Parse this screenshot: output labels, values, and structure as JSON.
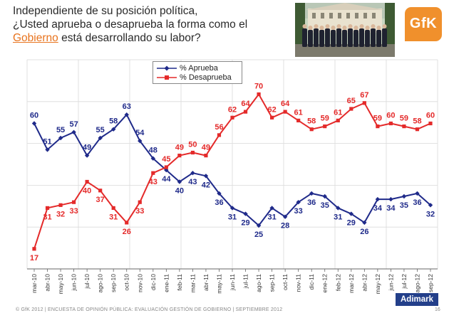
{
  "title": {
    "line1": "Independiente de su posición política,",
    "line2": "¿Usted aprueba o desaprueba la forma como el",
    "line3_highlight": "Gobierno",
    "line3_rest": " está desarrollando su labor?"
  },
  "logo_text": "GfK",
  "brand_text": "Adimark",
  "footer": "© GfK 2012 | ENCUESTA DE OPINIÓN PÚBLICA: EVALUACIÓN GESTIÓN DE GOBIERNO | SEPTIEMBRE 2012",
  "page_number": "16",
  "colors": {
    "approve": "#1f2a8a",
    "disapprove": "#e42a2a",
    "grid": "#d9d9d9",
    "accent": "#e8731d",
    "brand": "#233f8a"
  },
  "chart_data": {
    "type": "line",
    "title": "",
    "xlabel": "",
    "ylabel": "",
    "ylim": [
      15,
      75
    ],
    "grid": true,
    "legend": "top-center",
    "categories": [
      "mar-10",
      "abr-10",
      "may-10",
      "jun-10",
      "jul-10",
      "ago-10",
      "sep-10",
      "oct-10",
      "nov-10",
      "dic-10",
      "ene-11",
      "feb-11",
      "mar-11",
      "abr-11",
      "may-11",
      "jun-11",
      "jul-11",
      "ago-11",
      "sep-11",
      "oct-11",
      "nov-11",
      "dic-11",
      "ene-12",
      "feb-12",
      "mar-12",
      "abr-12",
      "may-12",
      "jun-12",
      "jul-12",
      "ago-12",
      "sep-12"
    ],
    "series": [
      {
        "name": "% Aprueba",
        "marker": "diamond",
        "values": [
          60,
          51,
          55,
          57,
          49,
          55,
          58,
          63,
          54,
          48,
          44,
          40,
          43,
          42,
          36,
          31,
          29,
          25,
          31,
          28,
          33,
          36,
          35,
          31,
          29,
          26,
          34,
          34,
          35,
          36,
          32
        ]
      },
      {
        "name": "% Desaprueba",
        "marker": "square",
        "values": [
          17,
          31,
          32,
          33,
          40,
          37,
          31,
          26,
          33,
          43,
          45,
          49,
          50,
          49,
          56,
          62,
          64,
          70,
          62,
          64,
          61,
          58,
          59,
          61,
          65,
          67,
          59,
          60,
          59,
          58,
          60
        ]
      }
    ]
  }
}
